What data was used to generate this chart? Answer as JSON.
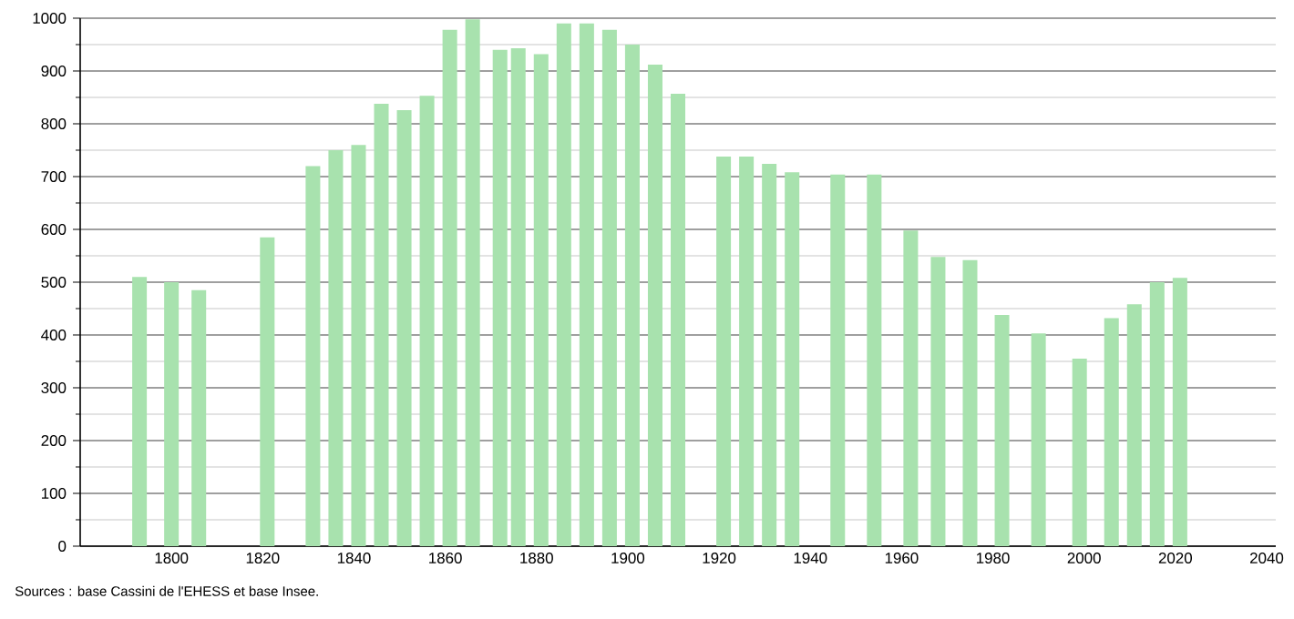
{
  "chart_data": {
    "type": "bar",
    "x": [
      1793,
      1800,
      1806,
      1821,
      1831,
      1836,
      1841,
      1846,
      1851,
      1856,
      1861,
      1866,
      1872,
      1876,
      1881,
      1886,
      1891,
      1896,
      1901,
      1906,
      1911,
      1921,
      1926,
      1931,
      1936,
      1946,
      1954,
      1962,
      1968,
      1975,
      1982,
      1990,
      1999,
      2006,
      2011,
      2016,
      2021
    ],
    "values": [
      510,
      500,
      485,
      585,
      720,
      750,
      760,
      838,
      826,
      853,
      978,
      998,
      940,
      943,
      932,
      990,
      990,
      978,
      950,
      912,
      857,
      738,
      738,
      724,
      708,
      704,
      704,
      598,
      548,
      542,
      438,
      403,
      355,
      432,
      458,
      500,
      508
    ],
    "color": "#a8e2ae",
    "xlim": [
      1780,
      2042
    ],
    "xticks": [
      1800,
      1820,
      1840,
      1860,
      1880,
      1900,
      1920,
      1940,
      1960,
      1980,
      2000,
      2020,
      2040
    ],
    "ylim": [
      0,
      1000
    ],
    "yticks": [
      0,
      {
        "value": 50,
        "label": null
      },
      100,
      {
        "value": 150,
        "label": null
      },
      200,
      {
        "value": 250,
        "label": null
      },
      300,
      {
        "value": 350,
        "label": null
      },
      400,
      {
        "value": 450,
        "label": null
      },
      500,
      {
        "value": 550,
        "label": null
      },
      600,
      {
        "value": 650,
        "label": null
      },
      700,
      {
        "value": 750,
        "label": null
      },
      800,
      {
        "value": 850,
        "label": null
      },
      900,
      {
        "value": 950,
        "label": null
      },
      1000
    ],
    "grid": true,
    "annotations": [
      "Sources : base Cassini de l'EHESS et base Insee."
    ]
  }
}
